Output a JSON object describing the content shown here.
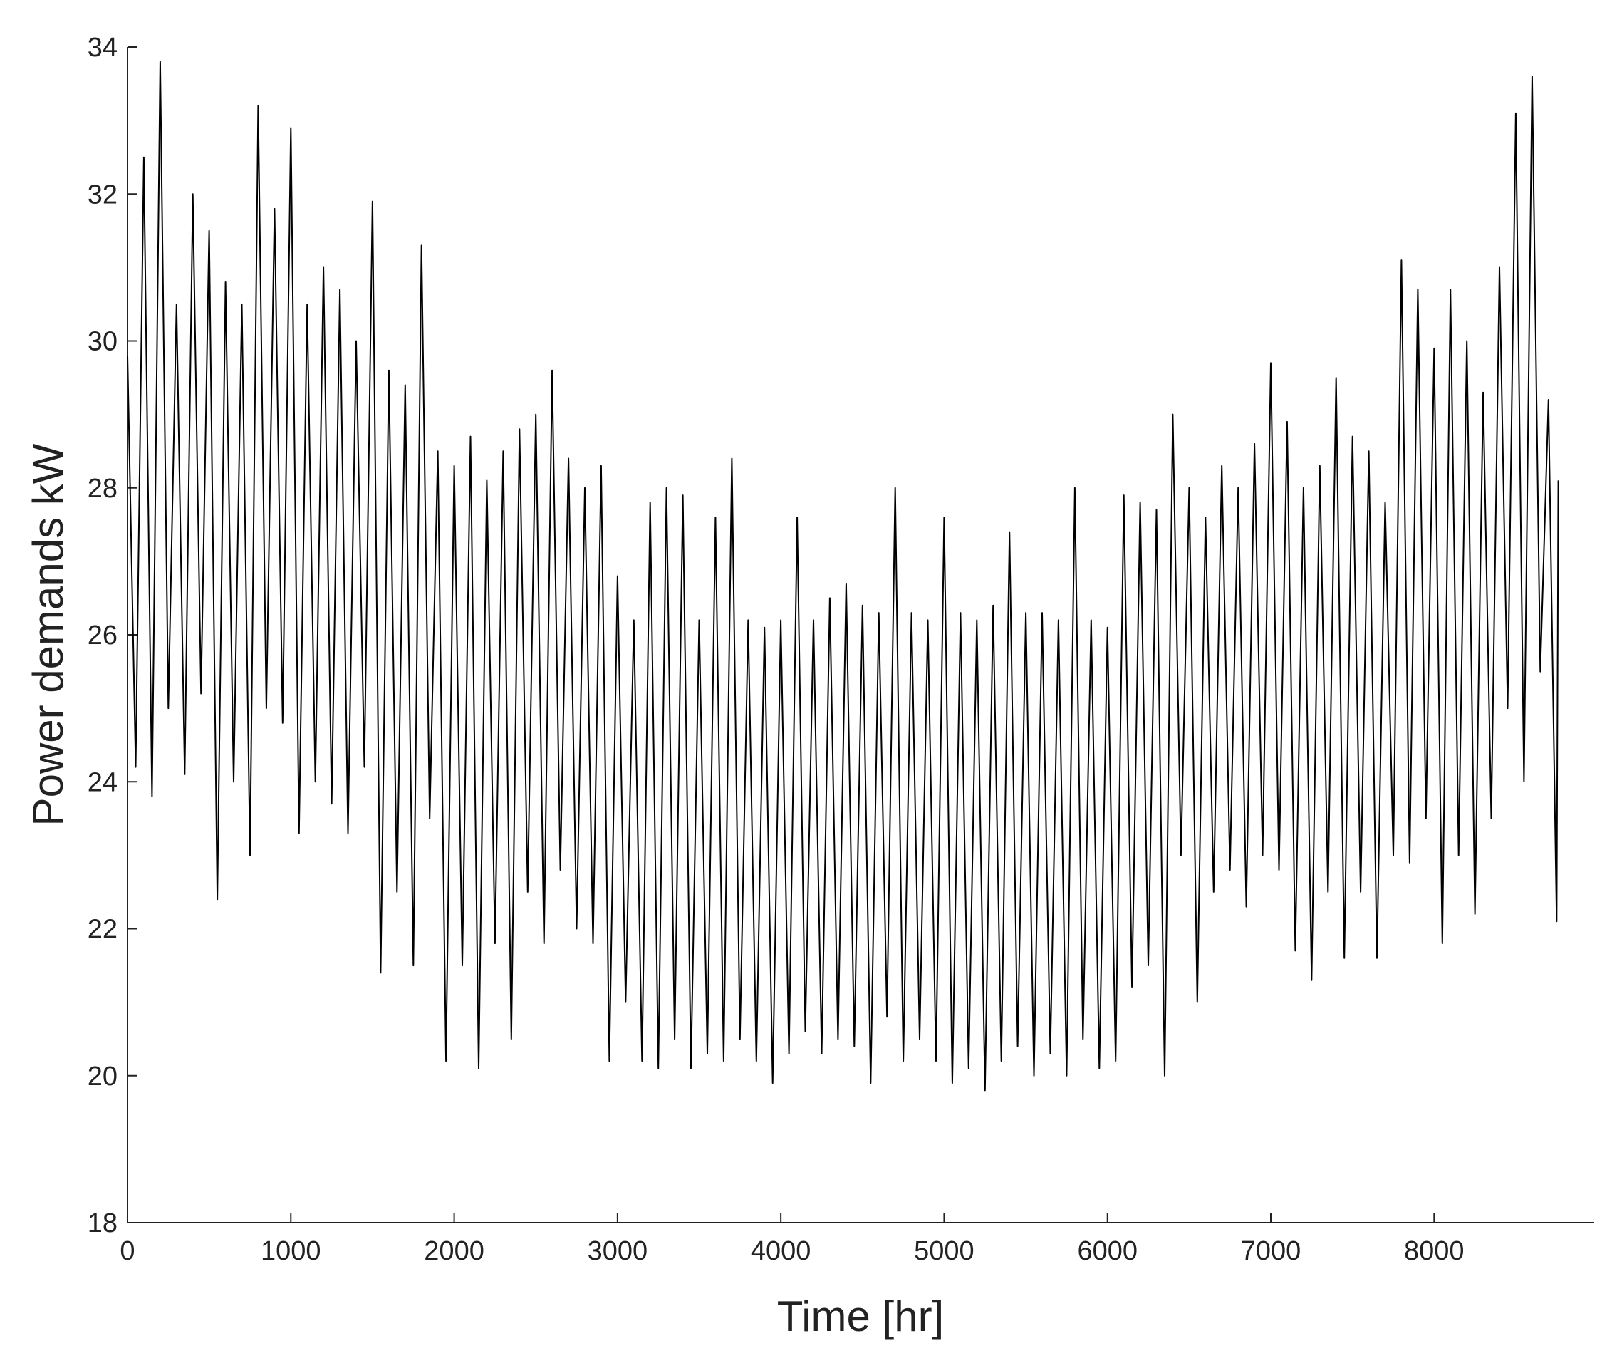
{
  "chart_data": {
    "type": "line",
    "xlabel": "Time [hr]",
    "ylabel": "Power demands kW",
    "xlim": [
      0,
      8980
    ],
    "ylim": [
      18,
      34
    ],
    "xticks": [
      0,
      1000,
      2000,
      3000,
      4000,
      5000,
      6000,
      7000,
      8000
    ],
    "yticks": [
      18,
      20,
      22,
      24,
      26,
      28,
      30,
      32,
      34
    ],
    "x": [
      0,
      50,
      100,
      150,
      200,
      250,
      300,
      350,
      400,
      450,
      500,
      550,
      600,
      650,
      700,
      750,
      800,
      850,
      900,
      950,
      1000,
      1050,
      1100,
      1150,
      1200,
      1250,
      1300,
      1350,
      1400,
      1450,
      1500,
      1550,
      1600,
      1650,
      1700,
      1750,
      1800,
      1850,
      1900,
      1950,
      2000,
      2050,
      2100,
      2150,
      2200,
      2250,
      2300,
      2350,
      2400,
      2450,
      2500,
      2550,
      2600,
      2650,
      2700,
      2750,
      2800,
      2850,
      2900,
      2950,
      3000,
      3050,
      3100,
      3150,
      3200,
      3250,
      3300,
      3350,
      3400,
      3450,
      3500,
      3550,
      3600,
      3650,
      3700,
      3750,
      3800,
      3850,
      3900,
      3950,
      4000,
      4050,
      4100,
      4150,
      4200,
      4250,
      4300,
      4350,
      4400,
      4450,
      4500,
      4550,
      4600,
      4650,
      4700,
      4750,
      4800,
      4850,
      4900,
      4950,
      5000,
      5050,
      5100,
      5150,
      5200,
      5250,
      5300,
      5350,
      5400,
      5450,
      5500,
      5550,
      5600,
      5650,
      5700,
      5750,
      5800,
      5850,
      5900,
      5950,
      6000,
      6050,
      6100,
      6150,
      6200,
      6250,
      6300,
      6350,
      6400,
      6450,
      6500,
      6550,
      6600,
      6650,
      6700,
      6750,
      6800,
      6850,
      6900,
      6950,
      7000,
      7050,
      7100,
      7150,
      7200,
      7250,
      7300,
      7350,
      7400,
      7450,
      7500,
      7550,
      7600,
      7650,
      7700,
      7750,
      7800,
      7850,
      7900,
      7950,
      8000,
      8050,
      8100,
      8150,
      8200,
      8250,
      8300,
      8350,
      8400,
      8450,
      8500,
      8550,
      8600,
      8650,
      8700,
      8750,
      8760
    ],
    "series": [
      {
        "color": "#000000",
        "values": [
          29.8,
          24.2,
          32.5,
          23.8,
          33.8,
          25.0,
          30.5,
          24.1,
          32.0,
          25.2,
          31.5,
          22.4,
          30.8,
          24.0,
          30.5,
          23.0,
          33.2,
          25.0,
          31.8,
          24.8,
          32.9,
          23.3,
          30.5,
          24.0,
          31.0,
          23.7,
          30.7,
          23.3,
          30.0,
          24.2,
          31.9,
          21.4,
          29.6,
          22.5,
          29.4,
          21.5,
          31.3,
          23.5,
          28.5,
          20.2,
          28.3,
          21.5,
          28.7,
          20.1,
          28.1,
          21.8,
          28.5,
          20.5,
          28.8,
          22.5,
          29.0,
          21.8,
          29.6,
          22.8,
          28.4,
          22.0,
          28.0,
          21.8,
          28.3,
          20.2,
          26.8,
          21.0,
          26.2,
          20.2,
          27.8,
          20.1,
          28.0,
          20.5,
          27.9,
          20.1,
          26.2,
          20.3,
          27.6,
          20.2,
          28.4,
          20.5,
          26.2,
          20.2,
          26.1,
          19.9,
          26.2,
          20.3,
          27.6,
          20.6,
          26.2,
          20.3,
          26.5,
          20.5,
          26.7,
          20.4,
          26.4,
          19.9,
          26.3,
          20.8,
          28.0,
          20.2,
          26.3,
          20.5,
          26.2,
          20.2,
          27.6,
          19.9,
          26.3,
          20.1,
          26.2,
          19.8,
          26.4,
          20.2,
          27.4,
          20.4,
          26.3,
          20.0,
          26.3,
          20.3,
          26.2,
          20.0,
          28.0,
          20.5,
          26.2,
          20.1,
          26.1,
          20.2,
          27.9,
          21.2,
          27.8,
          21.5,
          27.7,
          20.0,
          29.0,
          23.0,
          28.0,
          21.0,
          27.6,
          22.5,
          28.3,
          22.8,
          28.0,
          22.3,
          28.6,
          23.0,
          29.7,
          22.8,
          28.9,
          21.7,
          28.0,
          21.3,
          28.3,
          22.5,
          29.5,
          21.6,
          28.7,
          22.5,
          28.5,
          21.6,
          27.8,
          23.0,
          31.1,
          22.9,
          30.7,
          23.5,
          29.9,
          21.8,
          30.7,
          23.0,
          30.0,
          22.2,
          29.3,
          23.5,
          31.0,
          25.0,
          33.1,
          24.0,
          33.6,
          25.5,
          29.2,
          22.1,
          28.1
        ]
      }
    ]
  }
}
